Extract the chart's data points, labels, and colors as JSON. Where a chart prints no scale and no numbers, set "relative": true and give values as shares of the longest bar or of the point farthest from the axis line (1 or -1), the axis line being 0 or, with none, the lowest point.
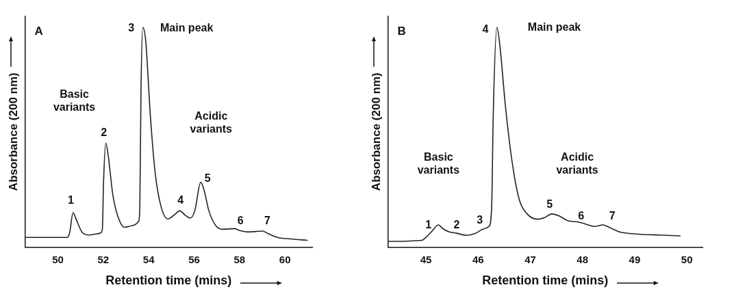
{
  "chart_data": [
    {
      "type": "line",
      "title": "A",
      "xlabel": "Retention time (mins)",
      "ylabel": "Absorbance (200 nm)",
      "relative": true,
      "xlim": [
        48.55,
        61.2
      ],
      "xticks": [
        50,
        52,
        54,
        56,
        58,
        60
      ],
      "tick_labels": "x",
      "grid": false,
      "legend": false,
      "marker": "none",
      "line_style": "solid",
      "x": [
        48.6,
        50.41,
        50.52,
        50.67,
        50.82,
        51.08,
        51.39,
        51.86,
        51.96,
        52.01,
        52.11,
        52.22,
        52.42,
        52.63,
        52.94,
        53.25,
        53.56,
        53.61,
        53.66,
        53.74,
        53.87,
        54.07,
        54.28,
        54.54,
        54.85,
        55.1,
        55.36,
        55.62,
        55.82,
        56.03,
        56.29,
        56.44,
        56.65,
        56.96,
        57.27,
        57.78,
        57.99,
        58.4,
        58.71,
        59.02,
        59.23,
        59.64,
        60.26,
        60.98
      ],
      "series": [
        {
          "color": "#222222",
          "values": [
            0.044,
            0.044,
            0.066,
            0.157,
            0.123,
            0.066,
            0.055,
            0.063,
            0.081,
            0.29,
            0.473,
            0.415,
            0.238,
            0.144,
            0.09,
            0.097,
            0.118,
            0.186,
            0.708,
            1.0,
            0.937,
            0.603,
            0.342,
            0.186,
            0.128,
            0.144,
            0.165,
            0.144,
            0.132,
            0.165,
            0.295,
            0.259,
            0.165,
            0.097,
            0.081,
            0.084,
            0.076,
            0.069,
            0.071,
            0.073,
            0.063,
            0.045,
            0.037,
            0.031
          ]
        }
      ],
      "annotations": [
        "1",
        "2",
        "3",
        "Main peak",
        "Basic variants",
        "Acidic variants",
        "4",
        "5",
        "6",
        "7"
      ]
    },
    {
      "type": "line",
      "title": "B",
      "xlabel": "Retention time (mins)",
      "ylabel": "Absorbance (200 nm)",
      "relative": true,
      "xlim": [
        44.27,
        50.3
      ],
      "xticks": [
        45,
        46,
        47,
        48,
        49,
        50
      ],
      "tick_labels": "x",
      "grid": false,
      "legend": false,
      "marker": "none",
      "line_style": "solid",
      "x": [
        44.29,
        44.92,
        44.99,
        45.1,
        45.24,
        45.33,
        45.44,
        45.59,
        45.77,
        45.95,
        46.11,
        46.21,
        46.26,
        46.29,
        46.36,
        46.42,
        46.52,
        46.65,
        46.78,
        46.94,
        47.15,
        47.28,
        47.41,
        47.56,
        47.72,
        47.9,
        48.03,
        48.24,
        48.39,
        48.52,
        48.7,
        49.07,
        49.48,
        49.87
      ],
      "series": [
        {
          "color": "#222222",
          "values": [
            0.026,
            0.031,
            0.042,
            0.068,
            0.101,
            0.083,
            0.07,
            0.063,
            0.054,
            0.063,
            0.083,
            0.094,
            0.182,
            0.599,
            1.0,
            0.911,
            0.651,
            0.391,
            0.224,
            0.151,
            0.127,
            0.135,
            0.151,
            0.141,
            0.12,
            0.115,
            0.107,
            0.094,
            0.101,
            0.089,
            0.07,
            0.059,
            0.055,
            0.051
          ]
        }
      ],
      "annotations": [
        "1",
        "2",
        "3",
        "4",
        "Main peak",
        "Basic variants",
        "Acidic variants",
        "5",
        "6",
        "7"
      ]
    }
  ]
}
